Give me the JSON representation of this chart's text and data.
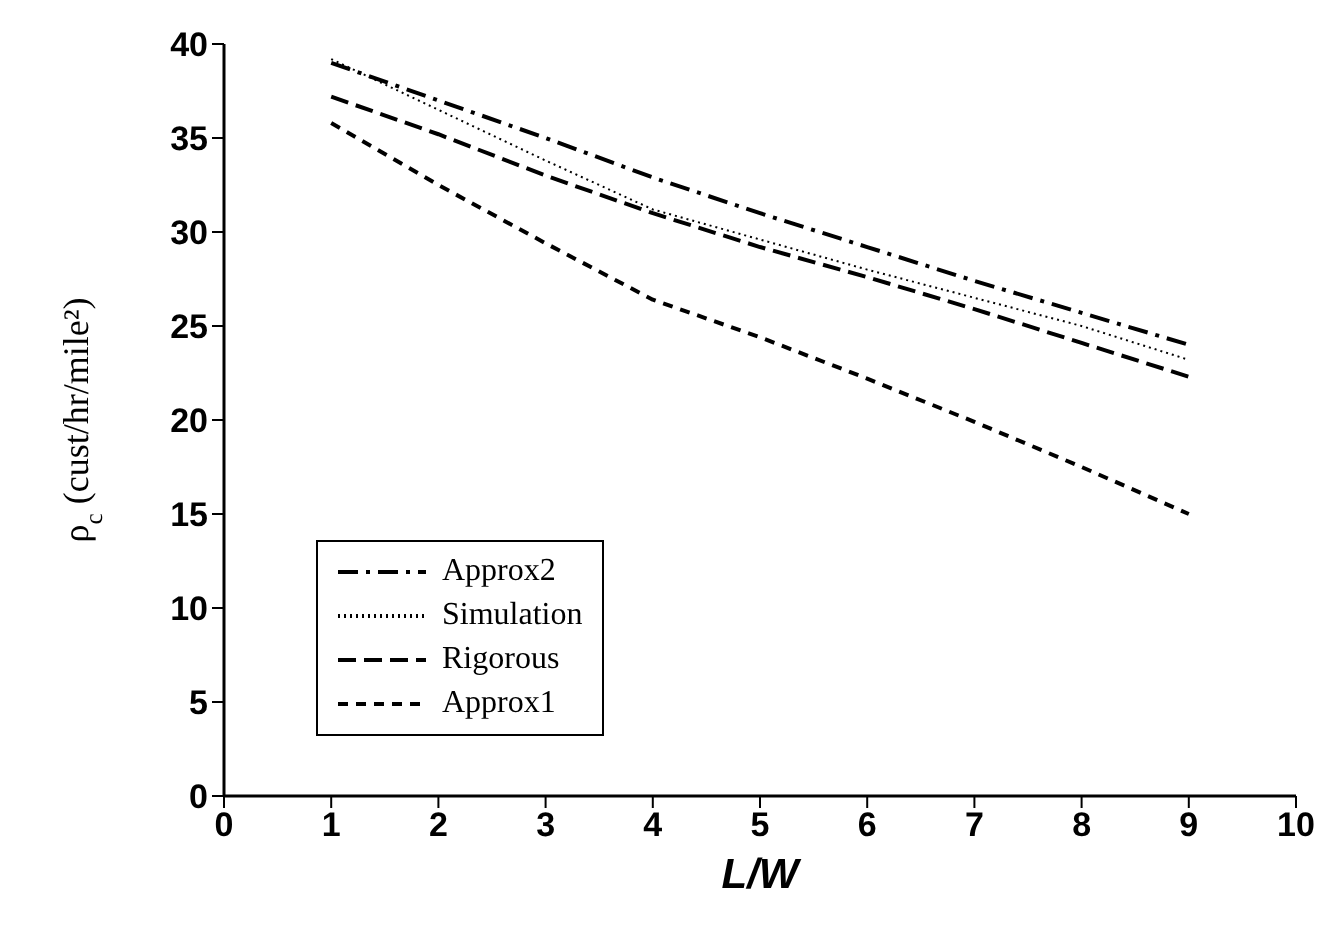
{
  "chart_data": {
    "type": "line",
    "xlabel": "L/W",
    "ylabel": "ρ$_{c}$ (cust/hr/mile²)",
    "x": [
      1,
      2,
      3,
      4,
      5,
      6,
      7,
      8,
      9
    ],
    "series": [
      {
        "name": "Approx2",
        "color": "#000000",
        "line_style": "dashdot",
        "values": [
          39,
          37,
          35,
          32.9,
          31,
          29.2,
          27.4,
          25.7,
          24
        ]
      },
      {
        "name": "Simulation",
        "color": "#000000",
        "line_style": "dotted",
        "values": [
          39.2,
          36.5,
          33.8,
          31.2,
          29.6,
          28,
          26.5,
          25,
          23.2
        ]
      },
      {
        "name": "Rigorous",
        "color": "#000000",
        "line_style": "dashed",
        "values": [
          37.2,
          35.2,
          33,
          31,
          29.2,
          27.6,
          25.9,
          24.1,
          22.3
        ]
      },
      {
        "name": "Approx1",
        "color": "#000000",
        "line_style": "short-dashed",
        "values": [
          35.8,
          32.5,
          29.4,
          26.4,
          24.4,
          22.2,
          19.9,
          17.5,
          15
        ]
      }
    ],
    "xlim": [
      0,
      10
    ],
    "xticks": [
      0,
      1,
      2,
      3,
      4,
      5,
      6,
      7,
      8,
      9,
      10
    ],
    "ylim": [
      0,
      40
    ],
    "yticks": [
      0,
      5,
      10,
      15,
      20,
      25,
      30,
      35,
      40
    ],
    "grid": false,
    "legend": "bottom left",
    "marker": "none"
  }
}
